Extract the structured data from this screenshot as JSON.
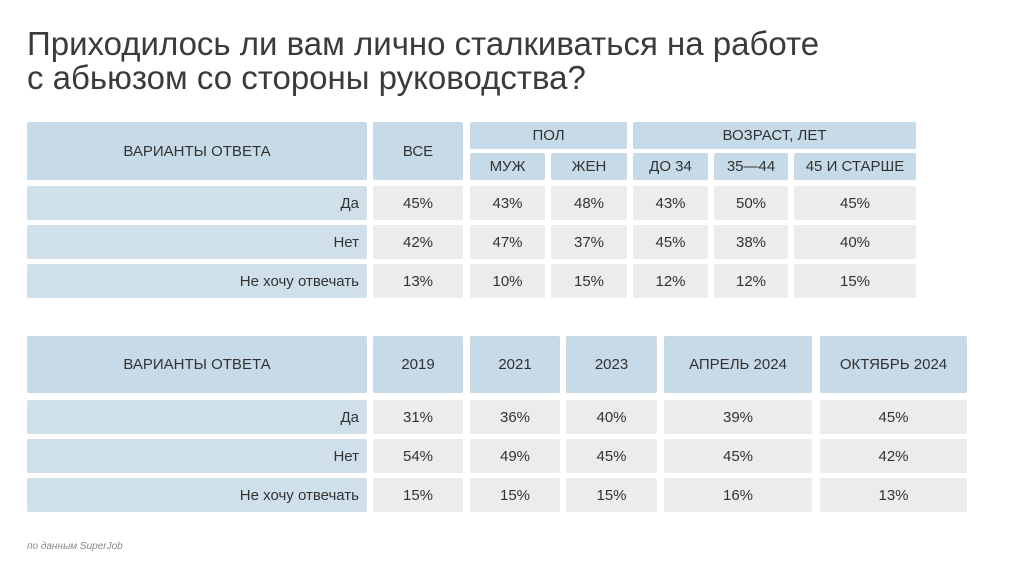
{
  "title_lines": [
    "Приходилось ли вам лично сталкиваться на работе",
    "с абьюзом со стороны руководства?"
  ],
  "table1": {
    "header": {
      "answer": "ВАРИАНТЫ ОТВЕТА",
      "all": "ВСЕ",
      "sex": "ПОЛ",
      "age": "ВОЗРАСТ, ЛЕТ",
      "subgroups": [
        "МУЖ",
        "ЖЕН",
        "ДО 34",
        "35—44",
        "45 И СТАРШЕ"
      ]
    },
    "rows": [
      {
        "label": "Да",
        "values": [
          "45%",
          "43%",
          "48%",
          "43%",
          "50%",
          "45%"
        ]
      },
      {
        "label": "Нет",
        "values": [
          "42%",
          "47%",
          "37%",
          "45%",
          "38%",
          "40%"
        ]
      },
      {
        "label": "Не хочу отвечать",
        "values": [
          "13%",
          "10%",
          "15%",
          "12%",
          "12%",
          "15%"
        ]
      }
    ]
  },
  "table2": {
    "header": {
      "answer": "ВАРИАНТЫ ОТВЕТА",
      "periods": [
        "2019",
        "2021",
        "2023",
        "АПРЕЛЬ 2024",
        "ОКТЯБРЬ 2024"
      ]
    },
    "rows": [
      {
        "label": "Да",
        "values": [
          "31%",
          "36%",
          "40%",
          "39%",
          "45%"
        ]
      },
      {
        "label": "Нет",
        "values": [
          "54%",
          "49%",
          "45%",
          "45%",
          "42%"
        ]
      },
      {
        "label": "Не хочу отвечать",
        "values": [
          "15%",
          "15%",
          "15%",
          "16%",
          "13%"
        ]
      }
    ]
  },
  "source": "по данным SuperJob"
}
